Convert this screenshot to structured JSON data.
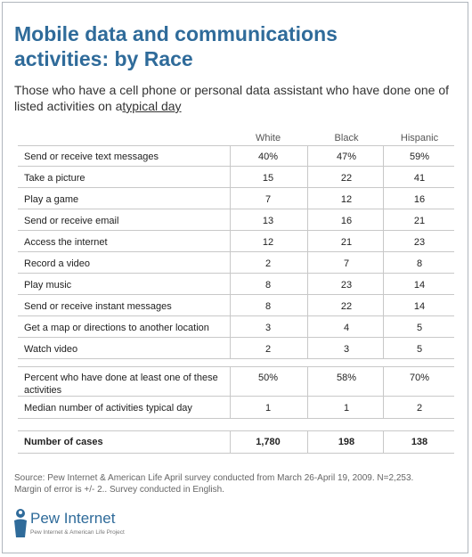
{
  "title": "Mobile data and communications activities: by Race",
  "subtitle_pre": "Those who have a cell phone or personal data assistant who have done one of listed activities on a",
  "subtitle_link": "typical day",
  "chart_data": {
    "type": "table",
    "columns": [
      "White",
      "Black",
      "Hispanic"
    ],
    "rows": [
      {
        "label": "Send or receive text messages",
        "values": [
          "40%",
          "47%",
          "59%"
        ]
      },
      {
        "label": "Take a picture",
        "values": [
          "15",
          "22",
          "41"
        ]
      },
      {
        "label": "Play a game",
        "values": [
          "7",
          "12",
          "16"
        ]
      },
      {
        "label": "Send or receive email",
        "values": [
          "13",
          "16",
          "21"
        ]
      },
      {
        "label": "Access the internet",
        "values": [
          "12",
          "21",
          "23"
        ]
      },
      {
        "label": "Record a video",
        "values": [
          "2",
          "7",
          "8"
        ]
      },
      {
        "label": "Play music",
        "values": [
          "8",
          "23",
          "14"
        ]
      },
      {
        "label": "Send or receive instant messages",
        "values": [
          "8",
          "22",
          "14"
        ]
      },
      {
        "label": "Get a map or directions to another location",
        "values": [
          "3",
          "4",
          "5"
        ]
      },
      {
        "label": "Watch video",
        "values": [
          "2",
          "3",
          "5"
        ]
      }
    ],
    "summary_rows": [
      {
        "label": "Percent who have done at least one of these activities",
        "values": [
          "50%",
          "58%",
          "70%"
        ]
      },
      {
        "label": "Median number of activities typical day",
        "values": [
          "1",
          "1",
          "2"
        ]
      }
    ],
    "cases_row": {
      "label": "Number of cases",
      "values": [
        "1,780",
        "198",
        "138"
      ]
    }
  },
  "source_line1": "Source: Pew Internet & American Life April survey conducted from March 26-April 19, 2009. N=2,253.",
  "source_line2": "Margin of error is +/- 2.. Survey conducted in English.",
  "logo": {
    "text": "Pew Internet",
    "sub": "Pew Internet & American Life Project",
    "icon": "pew-figure-icon",
    "color": "#2f6b9a"
  }
}
